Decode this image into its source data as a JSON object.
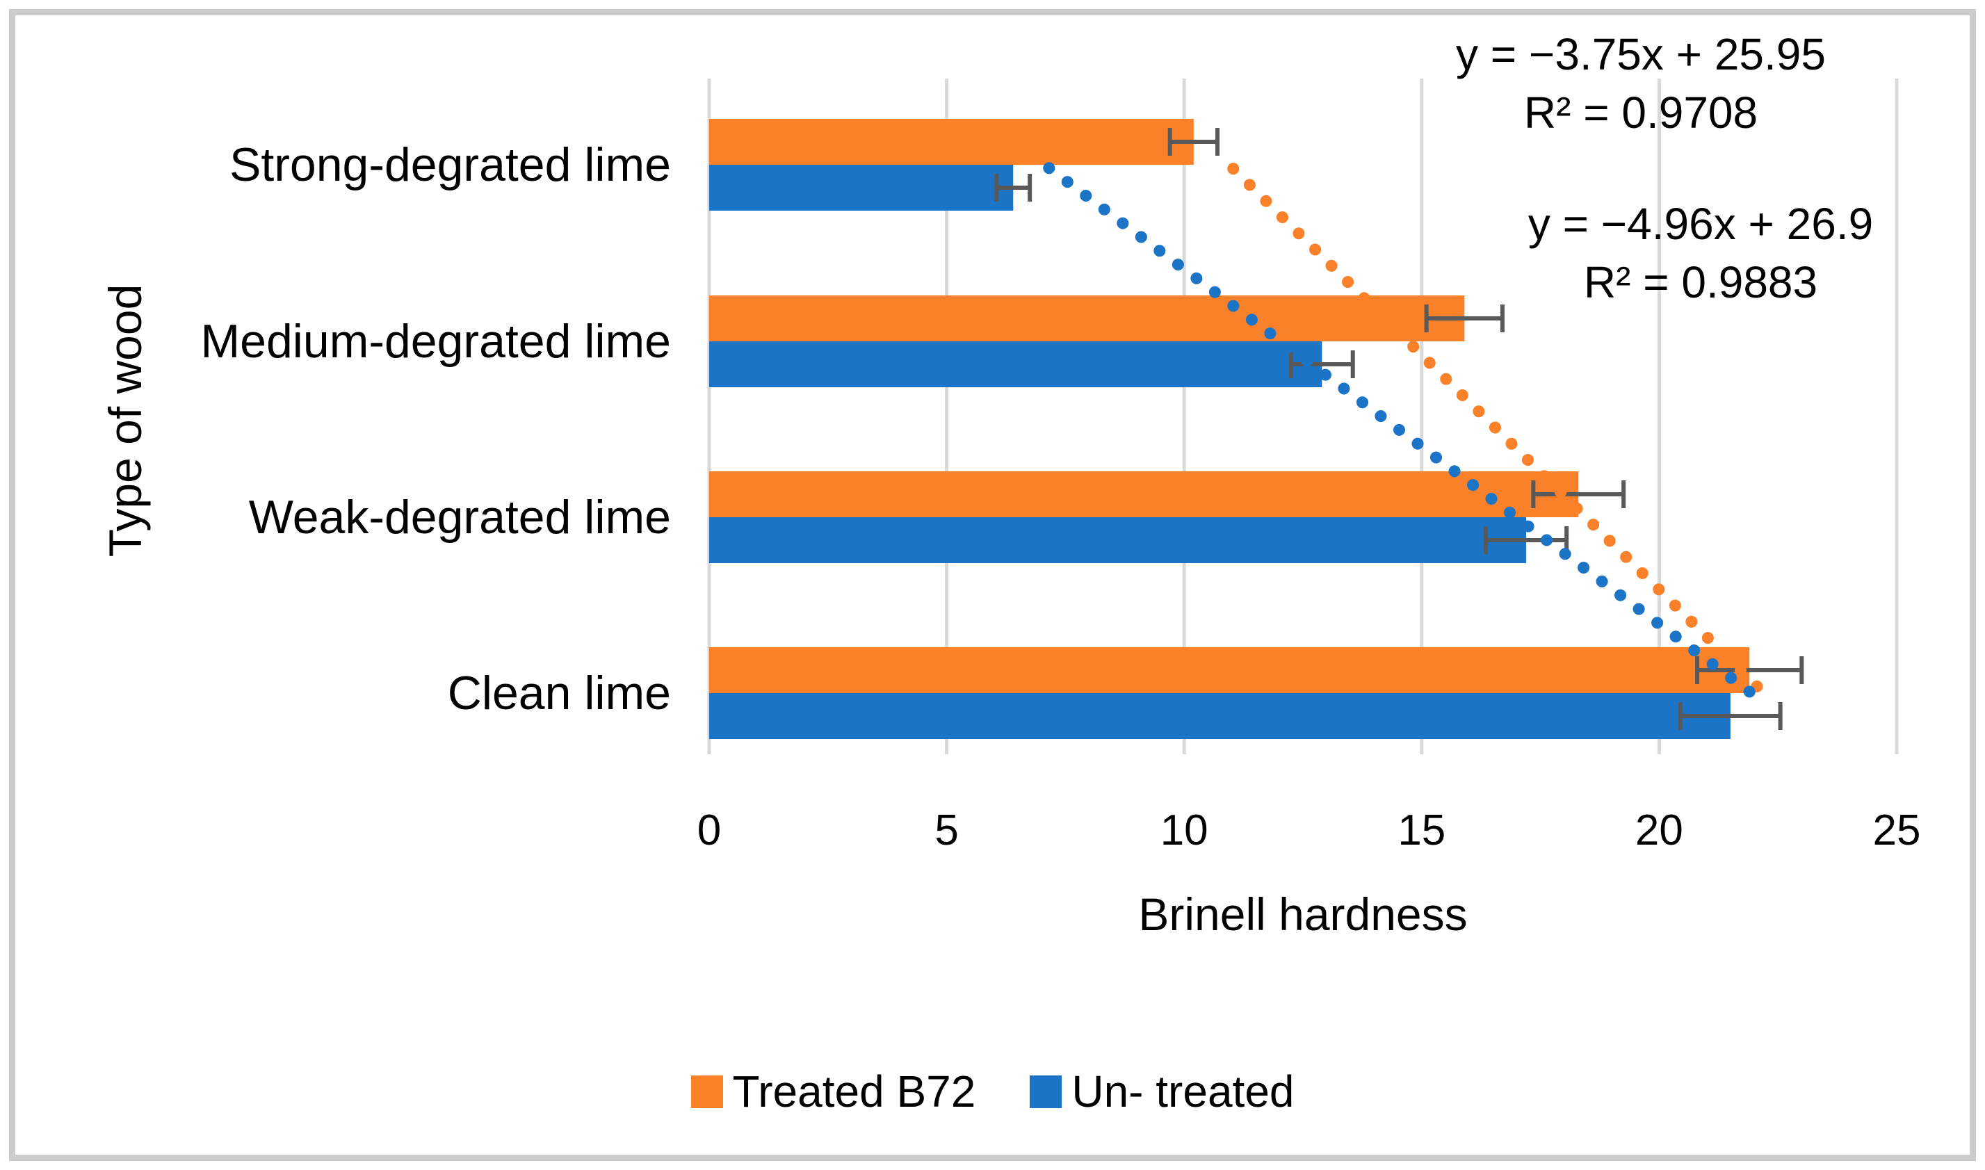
{
  "chart_data": {
    "type": "bar",
    "orientation": "horizontal",
    "xlabel": "Brinell hardness",
    "ylabel": "Type of wood",
    "categories": [
      "Strong-degrated lime",
      "Medium-degrated lime",
      "Weak-degrated lime",
      "Clean lime"
    ],
    "categories_note": "listed top-to-bottom as displayed",
    "xticks": [
      "0",
      "5",
      "10",
      "15",
      "20",
      "25"
    ],
    "xlim": [
      0,
      25
    ],
    "grid": "vertical-gridlines-on",
    "legend_position": "bottom-center",
    "series": [
      {
        "name": "Treated B72",
        "color": "#FA8029",
        "values": [
          10.2,
          15.9,
          18.3,
          21.9
        ],
        "errors": [
          0.5,
          0.8,
          0.95,
          1.1
        ]
      },
      {
        "name": "Un- treated",
        "color": "#1B74C6",
        "values": [
          6.4,
          12.9,
          17.2,
          21.5
        ],
        "errors": [
          0.35,
          0.65,
          0.85,
          1.05
        ]
      }
    ],
    "trendlines": [
      {
        "series": "Treated B72",
        "equation": "y = −3.75x + 25.95",
        "r2_label": "R² = 0.9708",
        "slope": -3.75,
        "intercept": 25.95,
        "color": "#FA8029",
        "style": "dotted"
      },
      {
        "series": "Un- treated",
        "equation": "y = −4.96x + 26.9",
        "r2_label": "R² = 0.9883",
        "slope": -4.96,
        "intercept": 26.9,
        "color": "#1B74C6",
        "style": "dotted"
      }
    ],
    "error_bar_color": "#595959",
    "gridline_color": "#d9d9d9",
    "frame_color": "#cccccc"
  }
}
